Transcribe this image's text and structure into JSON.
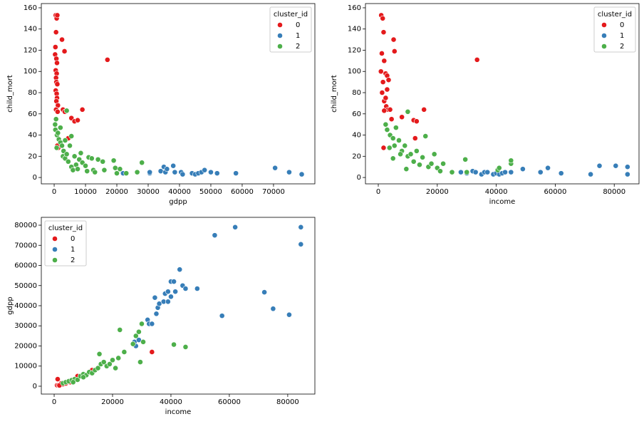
{
  "chart_data": [
    {
      "type": "scatter",
      "xlabel": "gdpp",
      "ylabel": "child_mort",
      "legend_title": "cluster_id",
      "legend": "upper right",
      "grid": false,
      "xlim": [
        -4100,
        83200
      ],
      "ylim": [
        -6,
        164
      ],
      "xticks": [
        0,
        10000,
        20000,
        30000,
        40000,
        50000,
        60000,
        70000
      ],
      "yticks": [
        0,
        20,
        40,
        60,
        80,
        100,
        120,
        140,
        160
      ],
      "series": [
        {
          "name": "0",
          "color": "#e41a1c",
          "x": [
            500,
            800,
            1000,
            600,
            400,
            300,
            700,
            900,
            500,
            800,
            600,
            700,
            1000,
            500,
            800,
            900,
            700,
            1200,
            600,
            1100,
            2800,
            3400,
            2500,
            3300,
            17000,
            4500,
            1300,
            5500,
            6500,
            7500,
            9000,
            1000
          ],
          "y": [
            153,
            150,
            153,
            137,
            123,
            116,
            112,
            108,
            101,
            98,
            94,
            90,
            88,
            82,
            79,
            75,
            72,
            68,
            64,
            62,
            64,
            62,
            130,
            119,
            111,
            37,
            28,
            56,
            53,
            54,
            64,
            30
          ]
        },
        {
          "name": "1",
          "color": "#377eb8",
          "x": [
            22000,
            30500,
            34000,
            35000,
            35500,
            38000,
            38500,
            40500,
            41000,
            44000,
            45000,
            46000,
            47000,
            48000,
            50000,
            52000,
            58000,
            70500,
            75000,
            79000,
            30500,
            36000
          ],
          "y": [
            4,
            4,
            6,
            10,
            5,
            11,
            5,
            5,
            3,
            4,
            3,
            4,
            5,
            7,
            5,
            4,
            4,
            9,
            5,
            3,
            5,
            8
          ]
        },
        {
          "name": "2",
          "color": "#4daf4a",
          "x": [
            300,
            400,
            600,
            900,
            1200,
            1500,
            2000,
            2500,
            3000,
            2800,
            3500,
            4000,
            4500,
            5000,
            5500,
            6000,
            6500,
            7000,
            7500,
            8000,
            8500,
            9000,
            10000,
            10500,
            11000,
            12000,
            12500,
            13000,
            14000,
            15500,
            16000,
            19000,
            19500,
            20000,
            21000,
            23000,
            26500,
            28000,
            4000,
            2000,
            3500,
            5500,
            800
          ],
          "y": [
            50,
            45,
            55,
            40,
            42,
            36,
            33,
            30,
            25,
            20,
            18,
            22,
            15,
            30,
            10,
            7,
            20,
            12,
            8,
            17,
            23,
            14,
            11,
            6,
            19,
            18,
            7,
            5,
            17,
            15,
            7,
            16,
            9,
            4,
            8,
            4,
            5,
            14,
            63,
            47,
            35,
            39,
            28
          ]
        }
      ]
    },
    {
      "type": "scatter",
      "xlabel": "income",
      "ylabel": "child_mort",
      "legend_title": "cluster_id",
      "legend": "upper right",
      "grid": false,
      "xlim": [
        -4350,
        88400
      ],
      "ylim": [
        -6,
        164
      ],
      "xticks": [
        0,
        20000,
        40000,
        60000,
        80000
      ],
      "yticks": [
        0,
        20,
        40,
        60,
        80,
        100,
        120,
        140,
        160
      ],
      "series": [
        {
          "name": "0",
          "color": "#e41a1c",
          "x": [
            1000,
            1500,
            1200,
            1800,
            2000,
            900,
            2500,
            3000,
            3500,
            1600,
            1300,
            2000,
            2700,
            3300,
            4000,
            5500,
            5200,
            8000,
            12000,
            13000,
            15500,
            12500,
            33500,
            1800,
            2000,
            4500,
            3000,
            2500
          ],
          "y": [
            153,
            150,
            117,
            137,
            110,
            100,
            98,
            96,
            92,
            90,
            80,
            72,
            67,
            64,
            64,
            119,
            130,
            57,
            54,
            53,
            64,
            37,
            111,
            28,
            63,
            55,
            83,
            75
          ]
        },
        {
          "name": "1",
          "color": "#377eb8",
          "x": [
            30000,
            32000,
            33000,
            35000,
            36000,
            37000,
            39000,
            40000,
            41000,
            42000,
            43000,
            45000,
            49000,
            55000,
            57500,
            62000,
            72000,
            75000,
            80500,
            84500,
            84500,
            28000
          ],
          "y": [
            4,
            6,
            5,
            3,
            5,
            5,
            3,
            4,
            3,
            4,
            5,
            5,
            8,
            5,
            9,
            4,
            3,
            11,
            11,
            10,
            3,
            5
          ]
        },
        {
          "name": "2",
          "color": "#4daf4a",
          "x": [
            2500,
            3000,
            4000,
            5000,
            5500,
            6000,
            7000,
            8000,
            9000,
            10000,
            10000,
            11000,
            12000,
            13000,
            14000,
            15000,
            16000,
            17000,
            18000,
            19000,
            20000,
            21000,
            22000,
            25000,
            29500,
            30000,
            40500,
            41000,
            45000,
            45000,
            5000,
            7500,
            3800,
            9500
          ],
          "y": [
            50,
            45,
            40,
            37,
            30,
            47,
            35,
            25,
            30,
            62,
            20,
            22,
            15,
            25,
            12,
            19,
            39,
            10,
            13,
            22,
            9,
            6,
            13,
            5,
            17,
            5,
            7,
            9,
            13,
            16,
            18,
            22,
            28,
            8
          ]
        }
      ]
    },
    {
      "type": "scatter",
      "xlabel": "income",
      "ylabel": "gdpp",
      "legend_title": "cluster_id",
      "legend": "upper left",
      "grid": false,
      "xlim": [
        -4400,
        89300
      ],
      "ylim": [
        -3900,
        83900
      ],
      "xticks": [
        0,
        20000,
        40000,
        60000,
        80000
      ],
      "yticks": [
        0,
        10000,
        20000,
        30000,
        40000,
        50000,
        60000,
        70000,
        80000
      ],
      "series": [
        {
          "name": "0",
          "color": "#e41a1c",
          "x": [
            1000,
            1500,
            2000,
            2500,
            3000,
            4000,
            1200,
            8000,
            12500,
            13000,
            33500,
            5500,
            1800
          ],
          "y": [
            500,
            600,
            800,
            1500,
            1000,
            1400,
            3500,
            5000,
            7500,
            8000,
            17000,
            2000,
            400
          ]
        },
        {
          "name": "1",
          "color": "#377eb8",
          "x": [
            27500,
            28000,
            29000,
            32000,
            32500,
            33500,
            34500,
            35000,
            35500,
            36000,
            37500,
            38000,
            39000,
            39000,
            40000,
            40000,
            41000,
            41500,
            43000,
            44000,
            45000,
            49000,
            55000,
            57500,
            62000,
            72000,
            75000,
            80500,
            84500,
            84500
          ],
          "y": [
            22000,
            20000,
            23000,
            33000,
            31000,
            31000,
            44000,
            36000,
            39000,
            41000,
            42000,
            46000,
            42000,
            47000,
            44500,
            52000,
            52000,
            47000,
            58000,
            50000,
            48500,
            48500,
            75000,
            35000,
            79000,
            46700,
            38500,
            35500,
            79000,
            70500
          ]
        },
        {
          "name": "2",
          "color": "#4daf4a",
          "x": [
            3000,
            4000,
            5000,
            6000,
            7000,
            8000,
            9000,
            10000,
            11000,
            12000,
            13000,
            14000,
            15000,
            15500,
            16000,
            17000,
            18000,
            19000,
            20000,
            21000,
            22000,
            22500,
            24000,
            27000,
            28000,
            29000,
            29500,
            30000,
            30500,
            41000,
            45000,
            10000,
            6500
          ],
          "y": [
            1500,
            2000,
            2500,
            3000,
            3500,
            3200,
            5000,
            6000,
            5500,
            7000,
            6500,
            8000,
            9000,
            16000,
            11000,
            12000,
            10000,
            11000,
            13000,
            9000,
            14000,
            28000,
            17000,
            21000,
            25000,
            27000,
            12000,
            31000,
            22000,
            20700,
            19500,
            4500,
            2000
          ]
        }
      ]
    }
  ]
}
